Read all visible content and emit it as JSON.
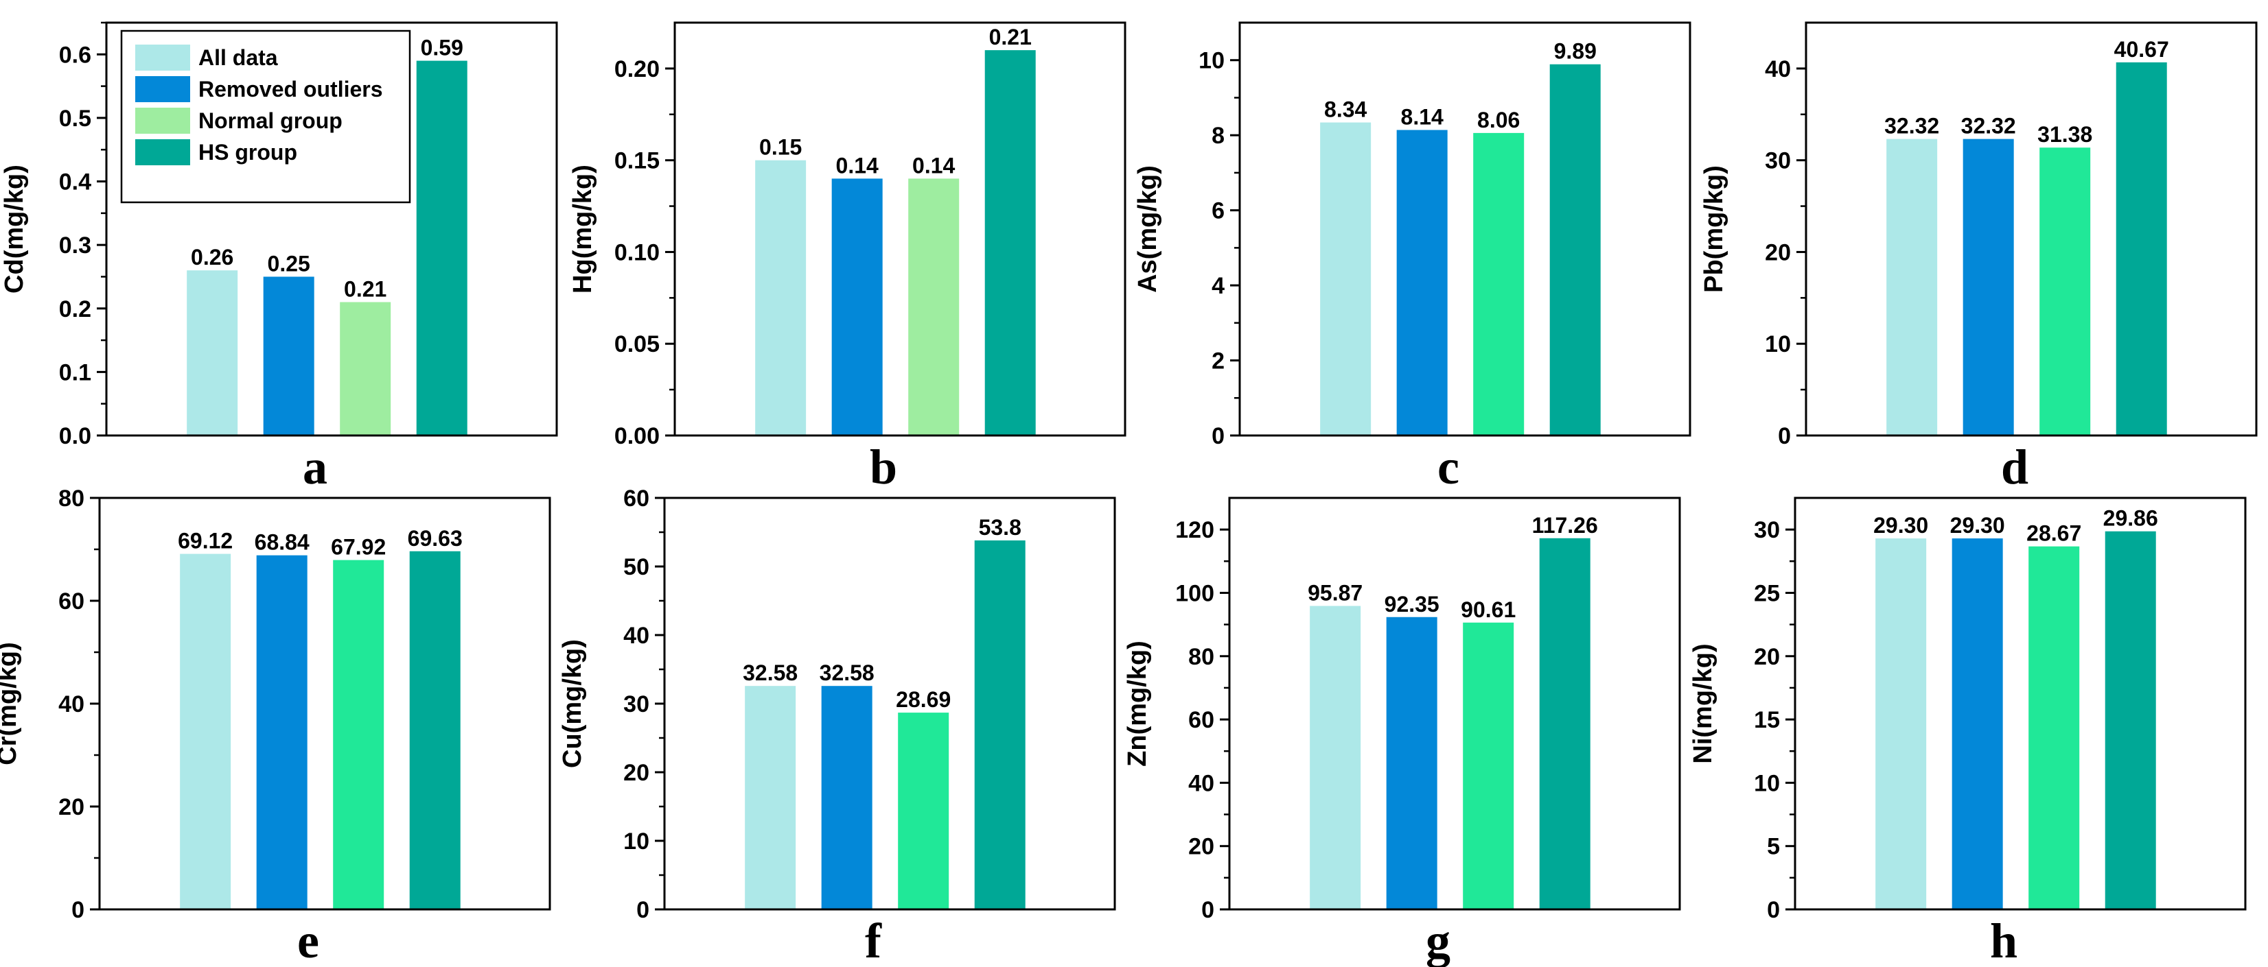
{
  "series_colors": [
    "#ade8e8",
    "#0388d8",
    "#20e898",
    "#00a896"
  ],
  "legend": {
    "items": [
      {
        "label": "All data",
        "color": "#ade8e8"
      },
      {
        "label": "Removed outliers",
        "color": "#0388d8"
      },
      {
        "label": "Normal group",
        "color": "#9eeda0"
      },
      {
        "label": "HS group",
        "color": "#00a896"
      }
    ]
  },
  "chart_data": [
    {
      "panel": "a",
      "type": "bar",
      "ylabel": "Cd(mg/kg)",
      "ylim": [
        0,
        0.65
      ],
      "yticks": [
        "0.0",
        "0.1",
        "0.2",
        "0.3",
        "0.4",
        "0.5",
        "0.6"
      ],
      "ytick_values": [
        0,
        0.1,
        0.2,
        0.3,
        0.4,
        0.5,
        0.6
      ],
      "categories": [
        "All data",
        "Removed outliers",
        "Normal group",
        "HS group"
      ],
      "values": [
        0.26,
        0.25,
        0.21,
        0.59
      ],
      "labels": [
        "0.26",
        "0.25",
        "0.21",
        "0.59"
      ],
      "colors": [
        "#ade8e8",
        "#0388d8",
        "#9eeda0",
        "#00a896"
      ],
      "legend": true
    },
    {
      "panel": "b",
      "type": "bar",
      "ylabel": "Hg(mg/kg)",
      "ylim": [
        0,
        0.225
      ],
      "yticks": [
        "0.00",
        "0.05",
        "0.10",
        "0.15",
        "0.20"
      ],
      "ytick_values": [
        0,
        0.05,
        0.1,
        0.15,
        0.2
      ],
      "categories": [
        "All data",
        "Removed outliers",
        "Normal group",
        "HS group"
      ],
      "values": [
        0.15,
        0.14,
        0.14,
        0.21
      ],
      "labels": [
        "0.15",
        "0.14",
        "0.14",
        "0.21"
      ],
      "colors": [
        "#ade8e8",
        "#0388d8",
        "#9eeda0",
        "#00a896"
      ]
    },
    {
      "panel": "c",
      "type": "bar",
      "ylabel": "As(mg/kg)",
      "ylim": [
        0,
        11
      ],
      "yticks": [
        "0",
        "2",
        "4",
        "6",
        "8",
        "10"
      ],
      "ytick_values": [
        0,
        2,
        4,
        6,
        8,
        10
      ],
      "categories": [
        "All data",
        "Removed outliers",
        "Normal group",
        "HS group"
      ],
      "values": [
        8.34,
        8.14,
        8.06,
        9.89
      ],
      "labels": [
        "8.34",
        "8.14",
        "8.06",
        "9.89"
      ],
      "colors": [
        "#ade8e8",
        "#0388d8",
        "#20e898",
        "#00a896"
      ]
    },
    {
      "panel": "d",
      "type": "bar",
      "ylabel": "Pb(mg/kg)",
      "ylim": [
        0,
        45
      ],
      "yticks": [
        "0",
        "10",
        "20",
        "30",
        "40"
      ],
      "ytick_values": [
        0,
        10,
        20,
        30,
        40
      ],
      "categories": [
        "All data",
        "Removed outliers",
        "Normal group",
        "HS group"
      ],
      "values": [
        32.32,
        32.32,
        31.38,
        40.67
      ],
      "labels": [
        "32.32",
        "32.32",
        "31.38",
        "40.67"
      ],
      "colors": [
        "#ade8e8",
        "#0388d8",
        "#20e898",
        "#00a896"
      ]
    },
    {
      "panel": "e",
      "type": "bar",
      "ylabel": "Cr(mg/kg)",
      "ylim": [
        0,
        80
      ],
      "yticks": [
        "0",
        "20",
        "40",
        "60",
        "80"
      ],
      "ytick_values": [
        0,
        20,
        40,
        60,
        80
      ],
      "categories": [
        "All data",
        "Removed outliers",
        "Normal group",
        "HS group"
      ],
      "values": [
        69.12,
        68.84,
        67.92,
        69.63
      ],
      "labels": [
        "69.12",
        "68.84",
        "67.92",
        "69.63"
      ],
      "colors": [
        "#ade8e8",
        "#0388d8",
        "#20e898",
        "#00a896"
      ]
    },
    {
      "panel": "f",
      "type": "bar",
      "ylabel": "Cu(mg/kg)",
      "ylim": [
        0,
        60
      ],
      "yticks": [
        "0",
        "10",
        "20",
        "30",
        "40",
        "50",
        "60"
      ],
      "ytick_values": [
        0,
        10,
        20,
        30,
        40,
        50,
        60
      ],
      "categories": [
        "All data",
        "Removed outliers",
        "Normal group",
        "HS group"
      ],
      "values": [
        32.58,
        32.58,
        28.69,
        53.8
      ],
      "labels": [
        "32.58",
        "32.58",
        "28.69",
        "53.8"
      ],
      "colors": [
        "#ade8e8",
        "#0388d8",
        "#20e898",
        "#00a896"
      ]
    },
    {
      "panel": "g",
      "type": "bar",
      "ylabel": "Zn(mg/kg)",
      "ylim": [
        0,
        130
      ],
      "yticks": [
        "0",
        "20",
        "40",
        "60",
        "80",
        "100",
        "120"
      ],
      "ytick_values": [
        0,
        20,
        40,
        60,
        80,
        100,
        120
      ],
      "categories": [
        "All data",
        "Removed outliers",
        "Normal group",
        "HS group"
      ],
      "values": [
        95.87,
        92.35,
        90.61,
        117.26
      ],
      "labels": [
        "95.87",
        "92.35",
        "90.61",
        "117.26"
      ],
      "colors": [
        "#ade8e8",
        "#0388d8",
        "#20e898",
        "#00a896"
      ]
    },
    {
      "panel": "h",
      "type": "bar",
      "ylabel": "Ni(mg/kg)",
      "ylim": [
        0,
        32.5
      ],
      "yticks": [
        "0",
        "5",
        "10",
        "15",
        "20",
        "25",
        "30"
      ],
      "ytick_values": [
        0,
        5,
        10,
        15,
        20,
        25,
        30
      ],
      "categories": [
        "All data",
        "Removed outliers",
        "Normal group",
        "HS group"
      ],
      "values": [
        29.3,
        29.3,
        28.67,
        29.86
      ],
      "labels": [
        "29.30",
        "29.30",
        "28.67",
        "29.86"
      ],
      "colors": [
        "#ade8e8",
        "#0388d8",
        "#20e898",
        "#00a896"
      ]
    }
  ]
}
